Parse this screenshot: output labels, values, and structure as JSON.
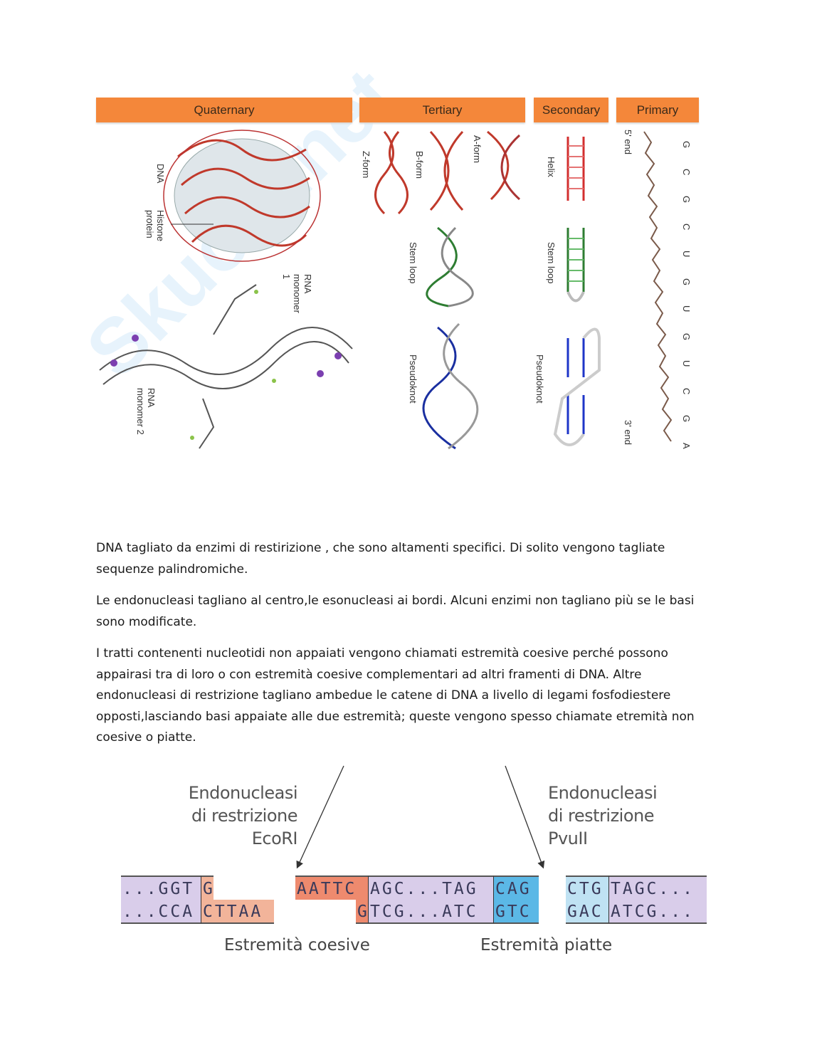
{
  "watermark": "Skuola.net",
  "figure1": {
    "headers": [
      "Quaternary",
      "Tertiary",
      "Secondary",
      "Primary"
    ],
    "header_color": "#f4873a",
    "quaternary_labels": {
      "dna": "DNA",
      "histone": "Histone protein",
      "rna1": "RNA monomer 1",
      "rna2": "RNA monomer 2"
    },
    "tertiary_labels": {
      "z": "Z-form",
      "b": "B-form",
      "a": "A-form",
      "stem": "Stem loop",
      "pseudo": "Pseudoknot"
    },
    "secondary_labels": {
      "helix": "Helix",
      "stem": "Stem loop",
      "pseudo": "Pseudoknot"
    },
    "primary": {
      "five": "5' end",
      "three": "3' end",
      "sequence": [
        "G",
        "C",
        "G",
        "C",
        "U",
        "G",
        "U",
        "G",
        "U",
        "C",
        "G",
        "A"
      ]
    }
  },
  "paragraphs": [
    "DNA tagliato da enzimi di restirizione , che sono altamenti specifici. Di solito vengono tagliate sequenze palindromiche.",
    "Le endonucleasi tagliano al centro,le esonucleasi ai bordi. Alcuni enzimi non tagliano più se le basi sono modificate.",
    "I tratti contenenti nucleotidi non appaiati vengono chiamati estremità coesive perché possono appairasi tra di loro o con estremità coesive complementari ad altri framenti di DNA. Altre endonucleasi di restrizione tagliano ambedue le catene di DNA a livello di legami fosfodiestere opposti,lasciando basi appaiate alle due estremità; queste vengono spesso chiamate etremità non coesive o piatte."
  ],
  "figure2": {
    "left_label": [
      "Endonucleasi",
      "di restrizione",
      "EcoRI"
    ],
    "right_label": [
      "Endonucleasi",
      "di restrizione",
      "PvuII"
    ],
    "left_fragment": {
      "top_a": "...GGT",
      "top_b": "G",
      "bottom_a": "...CCA",
      "bottom_b": "CTTAA"
    },
    "middle_fragment": {
      "top_a": "AATTC",
      "top_b": "AGC...TAG",
      "top_c": "CAG",
      "bottom_a": "G",
      "bottom_b": "TCG...ATC",
      "bottom_c": "GTC"
    },
    "right_fragment": {
      "top_a": "CTG",
      "top_b": "TAGC...",
      "bottom_a": "GAC",
      "bottom_b": "ATCG..."
    },
    "caption_left": "Estremità coesive",
    "caption_right": "Estremità piatte",
    "colors": {
      "purple": "#d9cdea",
      "orange_light": "#f2b49a",
      "orange": "#ee8a6e",
      "blue_light": "#bfe2f3",
      "blue": "#5bb8e6"
    }
  }
}
